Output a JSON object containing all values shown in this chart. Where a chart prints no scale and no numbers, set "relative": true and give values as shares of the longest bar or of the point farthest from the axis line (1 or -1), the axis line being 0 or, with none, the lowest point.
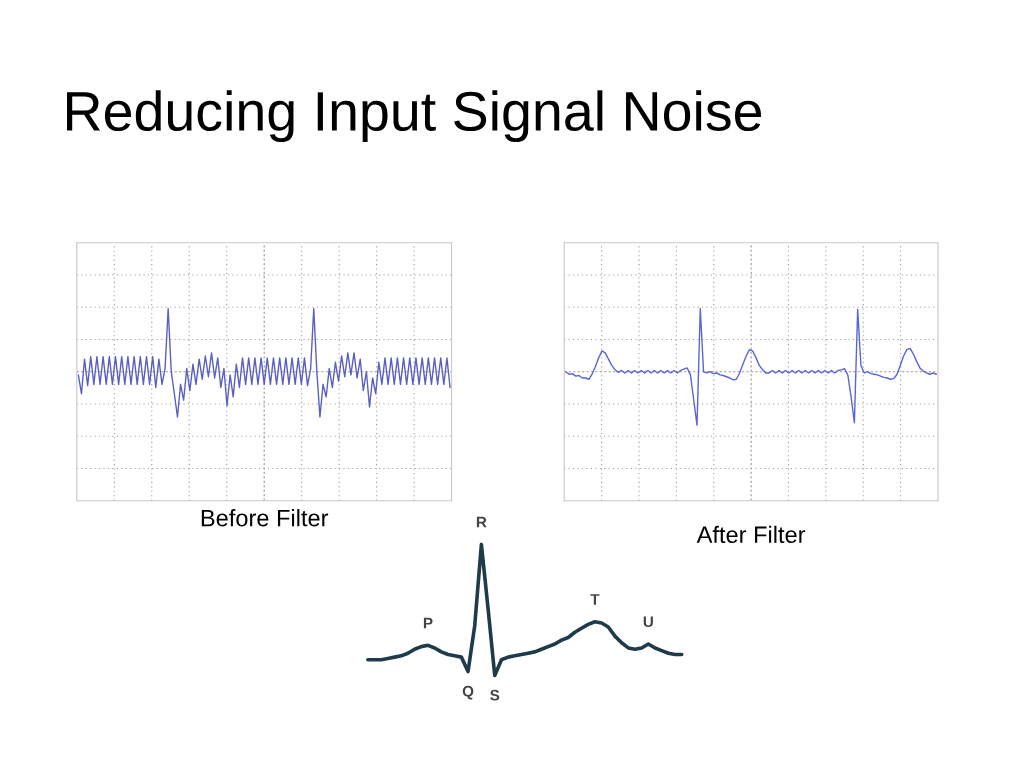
{
  "chart_data": [
    {
      "type": "line",
      "title": "Reducing Input Signal Noise",
      "xlabel": "Before Filter",
      "relative": true,
      "grid": true,
      "tick_labels": false,
      "categories": [
        null,
        null,
        null,
        null,
        null,
        null,
        null,
        null,
        null,
        null,
        null,
        null,
        null,
        null,
        null,
        null,
        null,
        null,
        null,
        null,
        null,
        null,
        null,
        null,
        null,
        null,
        null,
        null,
        null,
        null,
        null,
        null,
        null,
        null,
        null,
        null,
        null,
        null,
        null,
        null,
        null,
        null,
        null,
        null,
        null,
        null,
        null,
        null,
        null,
        null,
        null,
        null,
        null,
        null,
        null,
        null,
        null,
        null,
        null,
        null,
        null,
        null,
        null,
        null,
        null,
        null,
        null,
        null,
        null,
        null,
        null,
        null,
        null,
        null,
        null,
        null,
        null,
        null,
        null,
        null,
        null,
        null,
        null,
        null,
        null,
        null,
        null,
        null,
        null,
        null,
        null,
        null,
        null,
        null,
        null,
        null,
        null,
        null,
        null,
        null,
        null,
        null,
        null,
        null,
        null,
        null,
        null,
        null,
        null,
        null,
        null,
        null,
        null,
        null,
        null,
        null,
        null,
        null,
        null,
        null,
        null
      ],
      "series": [
        {
          "color": "#5a5fc0",
          "values": [
            -0.05,
            -0.35,
            0.2,
            -0.22,
            0.24,
            -0.2,
            0.24,
            -0.2,
            0.24,
            -0.2,
            0.24,
            -0.2,
            0.24,
            -0.2,
            0.24,
            -0.2,
            0.24,
            -0.2,
            0.24,
            -0.2,
            0.24,
            -0.2,
            0.24,
            -0.2,
            0.24,
            -0.25,
            0.2,
            -0.2,
            0.05,
            1.0,
            0.0,
            -0.35,
            -0.72,
            -0.2,
            -0.45,
            0.05,
            -0.3,
            0.12,
            -0.2,
            0.2,
            -0.12,
            0.25,
            -0.08,
            0.3,
            -0.1,
            0.22,
            -0.25,
            0.05,
            -0.54,
            -0.05,
            -0.4,
            0.12,
            -0.25,
            0.22,
            -0.2,
            0.22,
            -0.2,
            0.22,
            -0.2,
            0.22,
            -0.2,
            0.22,
            -0.2,
            0.22,
            -0.2,
            0.22,
            -0.2,
            0.22,
            -0.2,
            0.22,
            -0.2,
            0.22,
            -0.2,
            0.22,
            -0.22,
            0.05,
            1.0,
            0.0,
            -0.72,
            -0.2,
            -0.4,
            0.05,
            -0.25,
            0.15,
            -0.15,
            0.25,
            -0.08,
            0.3,
            -0.05,
            0.3,
            -0.1,
            0.2,
            -0.3,
            0.0,
            -0.56,
            -0.1,
            -0.35,
            0.15,
            -0.2,
            0.22,
            -0.2,
            0.22,
            -0.2,
            0.22,
            -0.2,
            0.22,
            -0.2,
            0.22,
            -0.2,
            0.22,
            -0.2,
            0.22,
            -0.2,
            0.22,
            -0.2,
            0.22,
            -0.2,
            0.22,
            -0.2,
            0.22,
            -0.25
          ]
        }
      ]
    },
    {
      "type": "line",
      "xlabel": "After Filter",
      "relative": true,
      "grid": true,
      "tick_labels": false,
      "categories": [
        null,
        null,
        null,
        null,
        null,
        null,
        null,
        null,
        null,
        null,
        null,
        null,
        null,
        null,
        null,
        null,
        null,
        null,
        null,
        null,
        null,
        null,
        null,
        null,
        null,
        null,
        null,
        null,
        null,
        null,
        null,
        null,
        null,
        null,
        null,
        null,
        null,
        null,
        null,
        null,
        null,
        null,
        null,
        null,
        null,
        null,
        null,
        null,
        null,
        null,
        null,
        null,
        null,
        null,
        null,
        null,
        null,
        null,
        null,
        null,
        null,
        null,
        null,
        null,
        null,
        null,
        null,
        null,
        null,
        null,
        null,
        null,
        null,
        null,
        null,
        null,
        null,
        null,
        null,
        null,
        null,
        null,
        null,
        null,
        null,
        null,
        null,
        null,
        null,
        null,
        null,
        null,
        null,
        null,
        null,
        null,
        null,
        null,
        null,
        null,
        null,
        null,
        null,
        null,
        null,
        null,
        null,
        null,
        null,
        null,
        null,
        null,
        null,
        null
      ],
      "series": [
        {
          "color": "#5b63d6",
          "values": [
            0.0,
            -0.04,
            -0.03,
            -0.07,
            -0.06,
            -0.1,
            -0.1,
            -0.12,
            -0.04,
            0.08,
            0.22,
            0.33,
            0.3,
            0.2,
            0.1,
            0.03,
            -0.01,
            0.02,
            -0.02,
            0.02,
            -0.02,
            0.02,
            -0.02,
            0.02,
            -0.02,
            0.02,
            -0.02,
            0.02,
            -0.02,
            0.02,
            -0.02,
            0.02,
            -0.02,
            0.02,
            -0.02,
            0.02,
            0.04,
            0.06,
            -0.05,
            -0.45,
            -0.85,
            1.0,
            0.0,
            -0.02,
            0.0,
            -0.03,
            -0.02,
            -0.05,
            -0.06,
            -0.08,
            -0.1,
            -0.13,
            -0.12,
            -0.02,
            0.12,
            0.25,
            0.35,
            0.33,
            0.22,
            0.1,
            0.03,
            -0.02,
            -0.02,
            0.02,
            -0.02,
            0.02,
            -0.02,
            0.02,
            -0.02,
            0.02,
            -0.02,
            0.02,
            -0.02,
            0.02,
            -0.02,
            0.02,
            -0.02,
            0.02,
            -0.02,
            0.02,
            -0.02,
            0.02,
            -0.02,
            0.02,
            0.03,
            0.05,
            -0.05,
            -0.4,
            -0.81,
            0.99,
            0.1,
            -0.02,
            0.0,
            -0.03,
            -0.04,
            -0.05,
            -0.07,
            -0.09,
            -0.1,
            -0.12,
            -0.11,
            -0.04,
            0.1,
            0.25,
            0.35,
            0.37,
            0.28,
            0.16,
            0.06,
            0.01,
            -0.02,
            -0.04,
            -0.02,
            -0.04
          ]
        }
      ]
    },
    {
      "type": "line",
      "relative": true,
      "tick_labels": false,
      "categories": [
        null,
        null,
        null,
        null,
        null,
        null,
        null,
        null,
        null,
        null,
        null,
        null,
        null,
        null,
        null,
        null,
        null,
        null,
        null,
        null,
        null,
        null,
        null,
        null,
        null,
        null,
        null,
        null,
        null,
        null,
        null,
        null,
        null,
        null,
        null,
        null,
        null,
        null,
        null,
        null,
        null,
        null,
        null,
        null,
        null,
        null,
        null,
        null
      ],
      "series": [
        {
          "color": "#1f3b4a",
          "values": [
            0.12,
            0.12,
            0.12,
            0.13,
            0.14,
            0.15,
            0.17,
            0.2,
            0.22,
            0.23,
            0.21,
            0.18,
            0.16,
            0.15,
            0.14,
            0.03,
            0.38,
            1.0,
            0.51,
            0.0,
            0.12,
            0.14,
            0.15,
            0.16,
            0.17,
            0.18,
            0.2,
            0.22,
            0.24,
            0.27,
            0.29,
            0.33,
            0.36,
            0.39,
            0.41,
            0.4,
            0.37,
            0.3,
            0.25,
            0.21,
            0.2,
            0.21,
            0.24,
            0.21,
            0.19,
            0.17,
            0.16,
            0.16
          ]
        }
      ],
      "annotations": [
        {
          "text": "P",
          "y": 0.23
        },
        {
          "text": "Q",
          "y": 0.03
        },
        {
          "text": "R",
          "y": 1.0
        },
        {
          "text": "S",
          "y": 0.0
        },
        {
          "text": "T",
          "y": 0.41
        },
        {
          "text": "U",
          "y": 0.24
        }
      ]
    }
  ]
}
